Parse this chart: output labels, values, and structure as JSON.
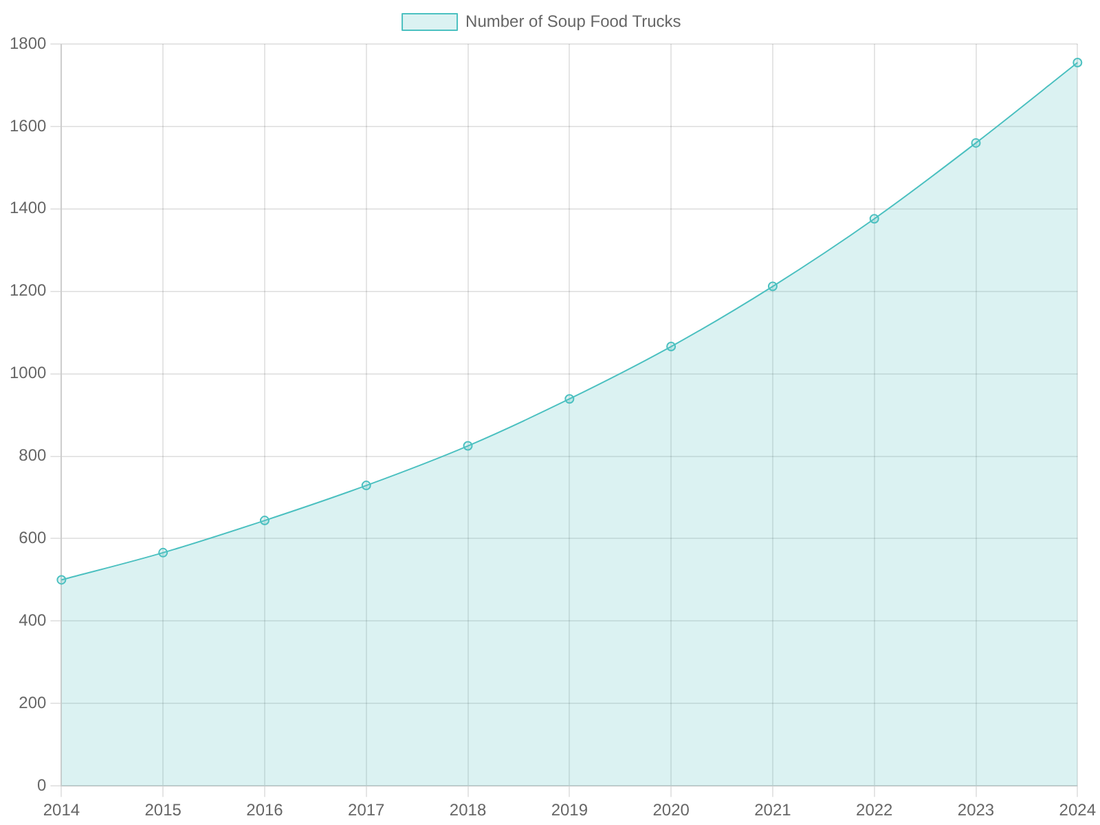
{
  "chart_data": {
    "type": "area",
    "categories": [
      "2014",
      "2015",
      "2016",
      "2017",
      "2018",
      "2019",
      "2020",
      "2021",
      "2022",
      "2023",
      "2024"
    ],
    "series": [
      {
        "name": "Number of Soup Food Trucks",
        "color": "#4bc0c0",
        "values": [
          500,
          566,
          644,
          729,
          825,
          939,
          1066,
          1212,
          1376,
          1560,
          1755
        ]
      }
    ],
    "ylim": [
      0,
      1800
    ],
    "yticks": [
      0,
      200,
      400,
      600,
      800,
      1000,
      1200,
      1400,
      1600,
      1800
    ],
    "grid": true,
    "legend": "top",
    "marker": "circle"
  }
}
